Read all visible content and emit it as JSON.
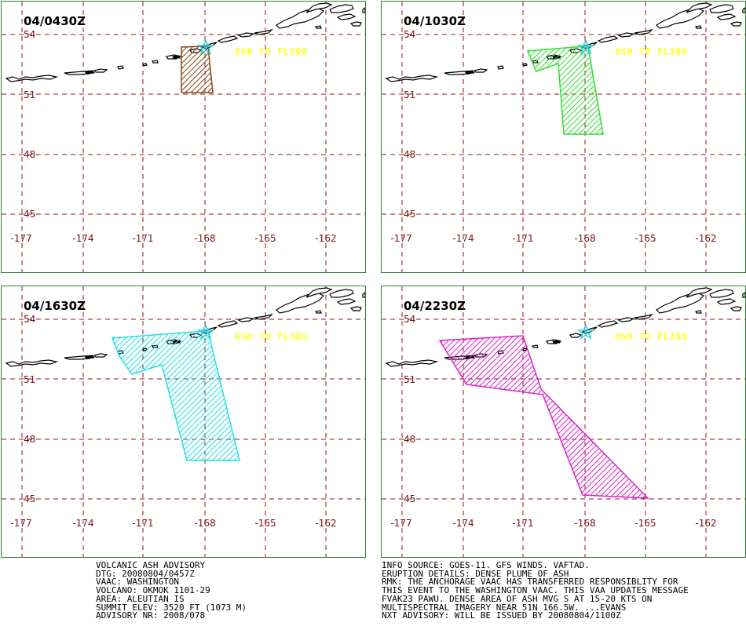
{
  "panels": [
    {
      "time": "04/0430Z",
      "ash_label": "ASH TO FL300",
      "plume_color": "#8b4513"
    },
    {
      "time": "04/1030Z",
      "ash_label": "ASH TO FL300",
      "plume_color": "#33dd33"
    },
    {
      "time": "04/1630Z",
      "ash_label": "ASH TO FL300",
      "plume_color": "#22e0e6"
    },
    {
      "time": "04/2230Z",
      "ash_label": "ASH TO FL300",
      "plume_color": "#dd22cc"
    }
  ],
  "lat_labels": [
    "54",
    "51",
    "48",
    "45"
  ],
  "lon_labels": [
    "-177",
    "-174",
    "-171",
    "-168",
    "-165",
    "-162"
  ],
  "volcano_marker_color": "#22d0e6",
  "info_left": [
    "VOLCANIC ASH ADVISORY",
    "DTG: 20080804/0457Z",
    "VAAC: WASHINGTON",
    "VOLCANO: OKMOK 1101-29",
    "AREA: ALEUTIAN IS",
    "SUMMIT ELEV: 3520 FT (1073 M)",
    "ADVISORY NR: 2008/078"
  ],
  "info_right": [
    "INFO SOURCE: GOES-11. GFS WINDS. VAFTAD.",
    "ERUPTION DETAILS: DENSE PLUME OF ASH",
    "RMK: THE ANCHORAGE VAAC HAS TRANSFERRED RESPONSIBLITY FOR",
    "THIS EVENT TO THE WASHINGTON VAAC. THIS VAA UPDATES MESSAGE",
    "FVAK23 PAWU. DENSE AREA OF ASH MVG S AT 15-20 KTS ON",
    "MULTISPECTRAL IMAGERY NEAR 51N 166.5W. ...EVANS",
    "NXT ADVISORY: WILL BE ISSUED BY 20080804/1100Z"
  ]
}
